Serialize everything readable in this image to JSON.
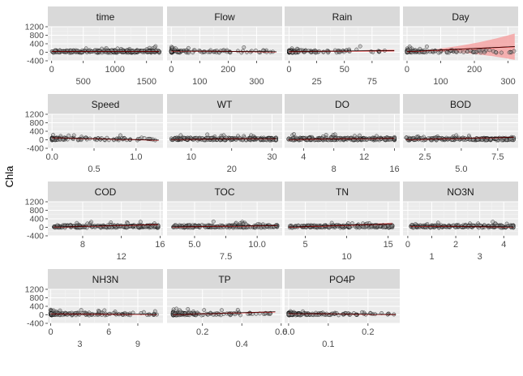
{
  "chart_data": {
    "type": "scatter",
    "title": "",
    "ylabel": "Chla",
    "y_ticks": [
      "1200",
      "800",
      "400",
      "0",
      "-400"
    ],
    "ylim": [
      -400,
      1200
    ],
    "grid": true,
    "colors": {
      "panel_bg": "#ebebeb",
      "strip_bg": "#d9d9d9",
      "grid_major": "#ffffff",
      "grid_minor": "#f5f5f5",
      "point_fill": "#999999",
      "point_edge": "#000000",
      "fit_line": "#cc0000",
      "ribbon": "#f4a3a3",
      "axis_text": "#4d4d4d"
    },
    "facets": [
      {
        "name": "time",
        "xlim": [
          -60,
          1760
        ],
        "ticks_row1": [
          0,
          1000
        ],
        "ticks_row2": [
          500,
          1500
        ],
        "labels_row1": [
          "0",
          "1000"
        ],
        "labels_row2": [
          "500",
          "1500"
        ],
        "x_range": [
          0,
          1700
        ],
        "points": 260,
        "spread": "uniform",
        "fit": {
          "y": [
            40,
            40
          ]
        },
        "ribbon": null
      },
      {
        "name": "Flow",
        "xlim": [
          -15,
          390
        ],
        "ticks_row1": [
          0,
          200
        ],
        "ticks_row2": [
          100,
          300
        ],
        "labels_row1": [
          "0",
          "200"
        ],
        "labels_row2": [
          "100",
          "300"
        ],
        "x_range": [
          0,
          370
        ],
        "points": 120,
        "spread": "skewed",
        "fit": {
          "y": [
            60,
            20
          ]
        },
        "ribbon": null
      },
      {
        "name": "Rain",
        "xlim": [
          -4,
          100
        ],
        "ticks_row1": [
          0,
          50
        ],
        "ticks_row2": [
          25,
          75
        ],
        "labels_row1": [
          "0",
          "50"
        ],
        "labels_row2": [
          "25",
          "75"
        ],
        "x_range": [
          0,
          95
        ],
        "points": 120,
        "spread": "skewed",
        "fit": {
          "y": [
            30,
            75
          ]
        },
        "ribbon": {
          "half_width": [
            10,
            60
          ]
        }
      },
      {
        "name": "Day",
        "xlim": [
          -12,
          330
        ],
        "ticks_row1": [
          0,
          200
        ],
        "ticks_row2": [
          100,
          300
        ],
        "labels_row1": [
          "0",
          "200"
        ],
        "labels_row2": [
          "100",
          "300"
        ],
        "x_range": [
          0,
          320
        ],
        "points": 120,
        "spread": "skewed",
        "fit": {
          "y": [
            30,
            260
          ]
        },
        "ribbon": {
          "half_width": [
            20,
            620
          ]
        }
      },
      {
        "name": "Speed",
        "xlim": [
          -0.05,
          1.32
        ],
        "ticks_row1": [
          0.0,
          1.0
        ],
        "ticks_row2": [
          0.5
        ],
        "labels_row1": [
          "0.0",
          "1.0"
        ],
        "labels_row2": [
          "0.5"
        ],
        "x_range": [
          0,
          1.27
        ],
        "points": 120,
        "spread": "skewed",
        "fit": {
          "y": [
            90,
            -20
          ]
        },
        "ribbon": null
      },
      {
        "name": "WT",
        "xlim": [
          4,
          32.5
        ],
        "ticks_row1": [
          10,
          30
        ],
        "ticks_row2": [
          20
        ],
        "labels_row1": [
          "10",
          "30"
        ],
        "labels_row2": [
          "20"
        ],
        "x_range": [
          5,
          31
        ],
        "points": 220,
        "spread": "uniform",
        "fit": {
          "y": [
            20,
            60
          ]
        },
        "ribbon": null
      },
      {
        "name": "DO",
        "xlim": [
          1.5,
          16.7
        ],
        "ticks_row1": [
          4,
          12
        ],
        "ticks_row2": [
          8,
          16
        ],
        "labels_row1": [
          "4",
          "12"
        ],
        "labels_row2": [
          "8",
          "16"
        ],
        "x_range": [
          2,
          16
        ],
        "points": 220,
        "spread": "uniform",
        "fit": {
          "y": [
            20,
            70
          ]
        },
        "ribbon": null
      },
      {
        "name": "BOD",
        "xlim": [
          1.0,
          8.9
        ],
        "ticks_row1": [
          2.5,
          7.5
        ],
        "ticks_row2": [
          5.0
        ],
        "labels_row1": [
          "2.5",
          "7.5"
        ],
        "labels_row2": [
          "5.0"
        ],
        "x_range": [
          1.2,
          8.6
        ],
        "points": 200,
        "spread": "uniform",
        "fit": {
          "y": [
            10,
            120
          ]
        },
        "ribbon": null
      },
      {
        "name": "COD",
        "xlim": [
          4.4,
          16.3
        ],
        "ticks_row1": [
          8,
          16
        ],
        "ticks_row2": [
          12
        ],
        "labels_row1": [
          "8",
          "16"
        ],
        "labels_row2": [
          "12"
        ],
        "x_range": [
          5,
          15.8
        ],
        "points": 220,
        "spread": "uniform",
        "fit": {
          "y": [
            10,
            130
          ]
        },
        "ribbon": null
      },
      {
        "name": "TOC",
        "xlim": [
          2.8,
          12.0
        ],
        "ticks_row1": [
          5.0,
          10.0
        ],
        "ticks_row2": [
          7.5
        ],
        "labels_row1": [
          "5.0",
          "10.0"
        ],
        "labels_row2": [
          "7.5"
        ],
        "x_range": [
          3.2,
          11.6
        ],
        "points": 200,
        "spread": "uniform",
        "fit": {
          "y": [
            20,
            80
          ]
        },
        "ribbon": null
      },
      {
        "name": "TN",
        "xlim": [
          2.5,
          16.4
        ],
        "ticks_row1": [
          5,
          15
        ],
        "ticks_row2": [
          10
        ],
        "labels_row1": [
          "5",
          "15"
        ],
        "labels_row2": [
          "10"
        ],
        "x_range": [
          3,
          15.5
        ],
        "points": 200,
        "spread": "uniform",
        "fit": {
          "y": [
            10,
            160
          ]
        },
        "ribbon": {
          "half_width": [
            8,
            60
          ]
        }
      },
      {
        "name": "NO3N",
        "xlim": [
          -0.2,
          4.6
        ],
        "ticks_row1": [
          0,
          2,
          4
        ],
        "ticks_row2": [
          1,
          3
        ],
        "labels_row1": [
          "0",
          "2",
          "4"
        ],
        "labels_row2": [
          "1",
          "3"
        ],
        "x_range": [
          0.1,
          4.4
        ],
        "points": 200,
        "spread": "uniform",
        "fit": {
          "y": [
            60,
            20
          ]
        },
        "ribbon": null
      },
      {
        "name": "NH3N",
        "xlim": [
          -0.3,
          11.6
        ],
        "ticks_row1": [
          0,
          6
        ],
        "ticks_row2": [
          3,
          9
        ],
        "labels_row1": [
          "0",
          "6"
        ],
        "labels_row2": [
          "3",
          "9"
        ],
        "x_range": [
          0,
          11
        ],
        "points": 160,
        "spread": "skewed",
        "fit": {
          "y": [
            40,
            20
          ]
        },
        "ribbon": null
      },
      {
        "name": "TP",
        "xlim": [
          0.02,
          0.605
        ],
        "ticks_row1": [
          0.2,
          0.6
        ],
        "ticks_row2": [
          0.4
        ],
        "labels_row1": [
          "0.2",
          "0.6"
        ],
        "labels_row2": [
          "0.4"
        ],
        "x_range": [
          0.05,
          0.57
        ],
        "points": 160,
        "spread": "skewed",
        "fit": {
          "y": [
            10,
            140
          ]
        },
        "ribbon": null
      },
      {
        "name": "PO4P",
        "xlim": [
          -0.01,
          0.28
        ],
        "ticks_row1": [
          0.0,
          0.2
        ],
        "ticks_row2": [
          0.1
        ],
        "labels_row1": [
          "0.0",
          "0.2"
        ],
        "labels_row2": [
          "0.1"
        ],
        "x_range": [
          0,
          0.27
        ],
        "points": 160,
        "spread": "skewed",
        "fit": {
          "y": [
            60,
            10
          ]
        },
        "ribbon": null
      }
    ]
  }
}
